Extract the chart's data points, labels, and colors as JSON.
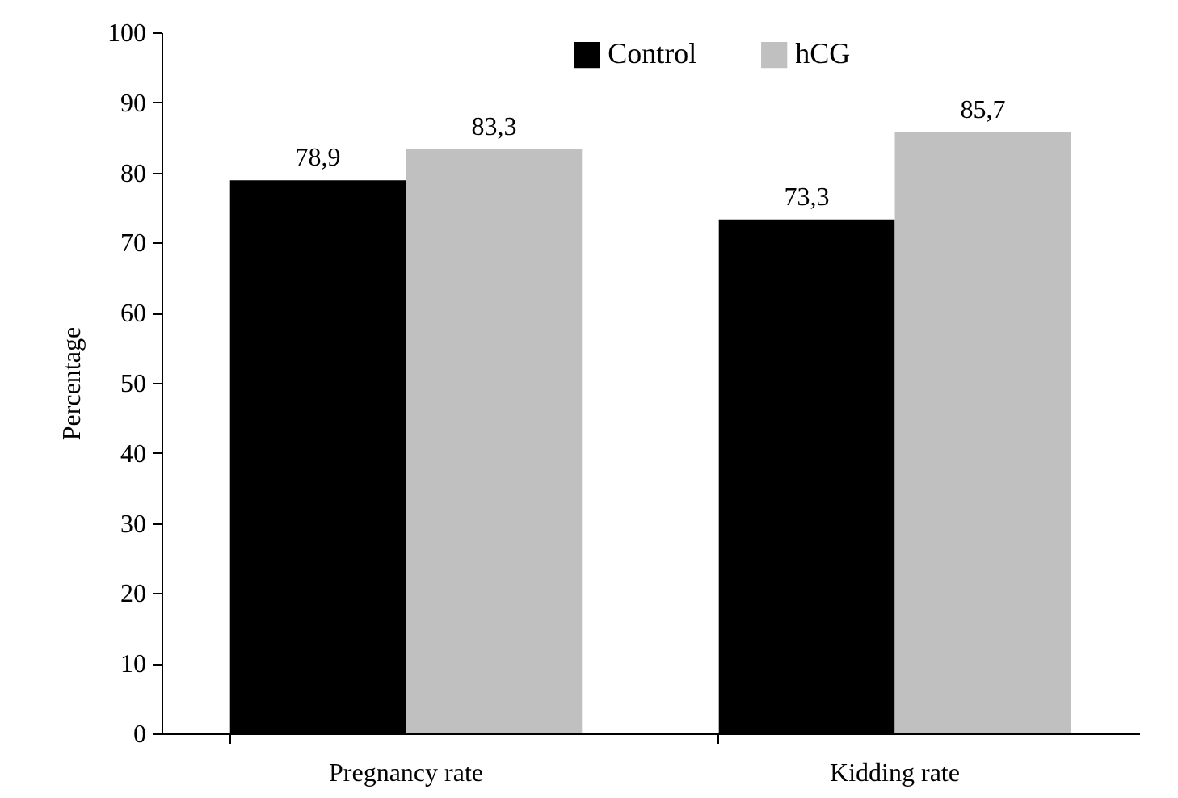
{
  "chart_data": {
    "type": "bar",
    "ylabel": "Percentage",
    "categories": [
      "Pregnancy rate",
      "Kidding rate"
    ],
    "series": [
      {
        "name": "Control",
        "color": "#000000",
        "values": [
          78.9,
          73.3
        ],
        "value_labels": [
          "78,9",
          "73,3"
        ]
      },
      {
        "name": "hCG",
        "color": "#c0c0c0",
        "values": [
          83.3,
          85.7
        ],
        "value_labels": [
          "83,3",
          "85,7"
        ]
      }
    ],
    "ylim": [
      0,
      100
    ],
    "yticks": [
      0,
      10,
      20,
      30,
      40,
      50,
      60,
      70,
      80,
      90,
      100
    ],
    "grid": false,
    "legend": "top"
  }
}
